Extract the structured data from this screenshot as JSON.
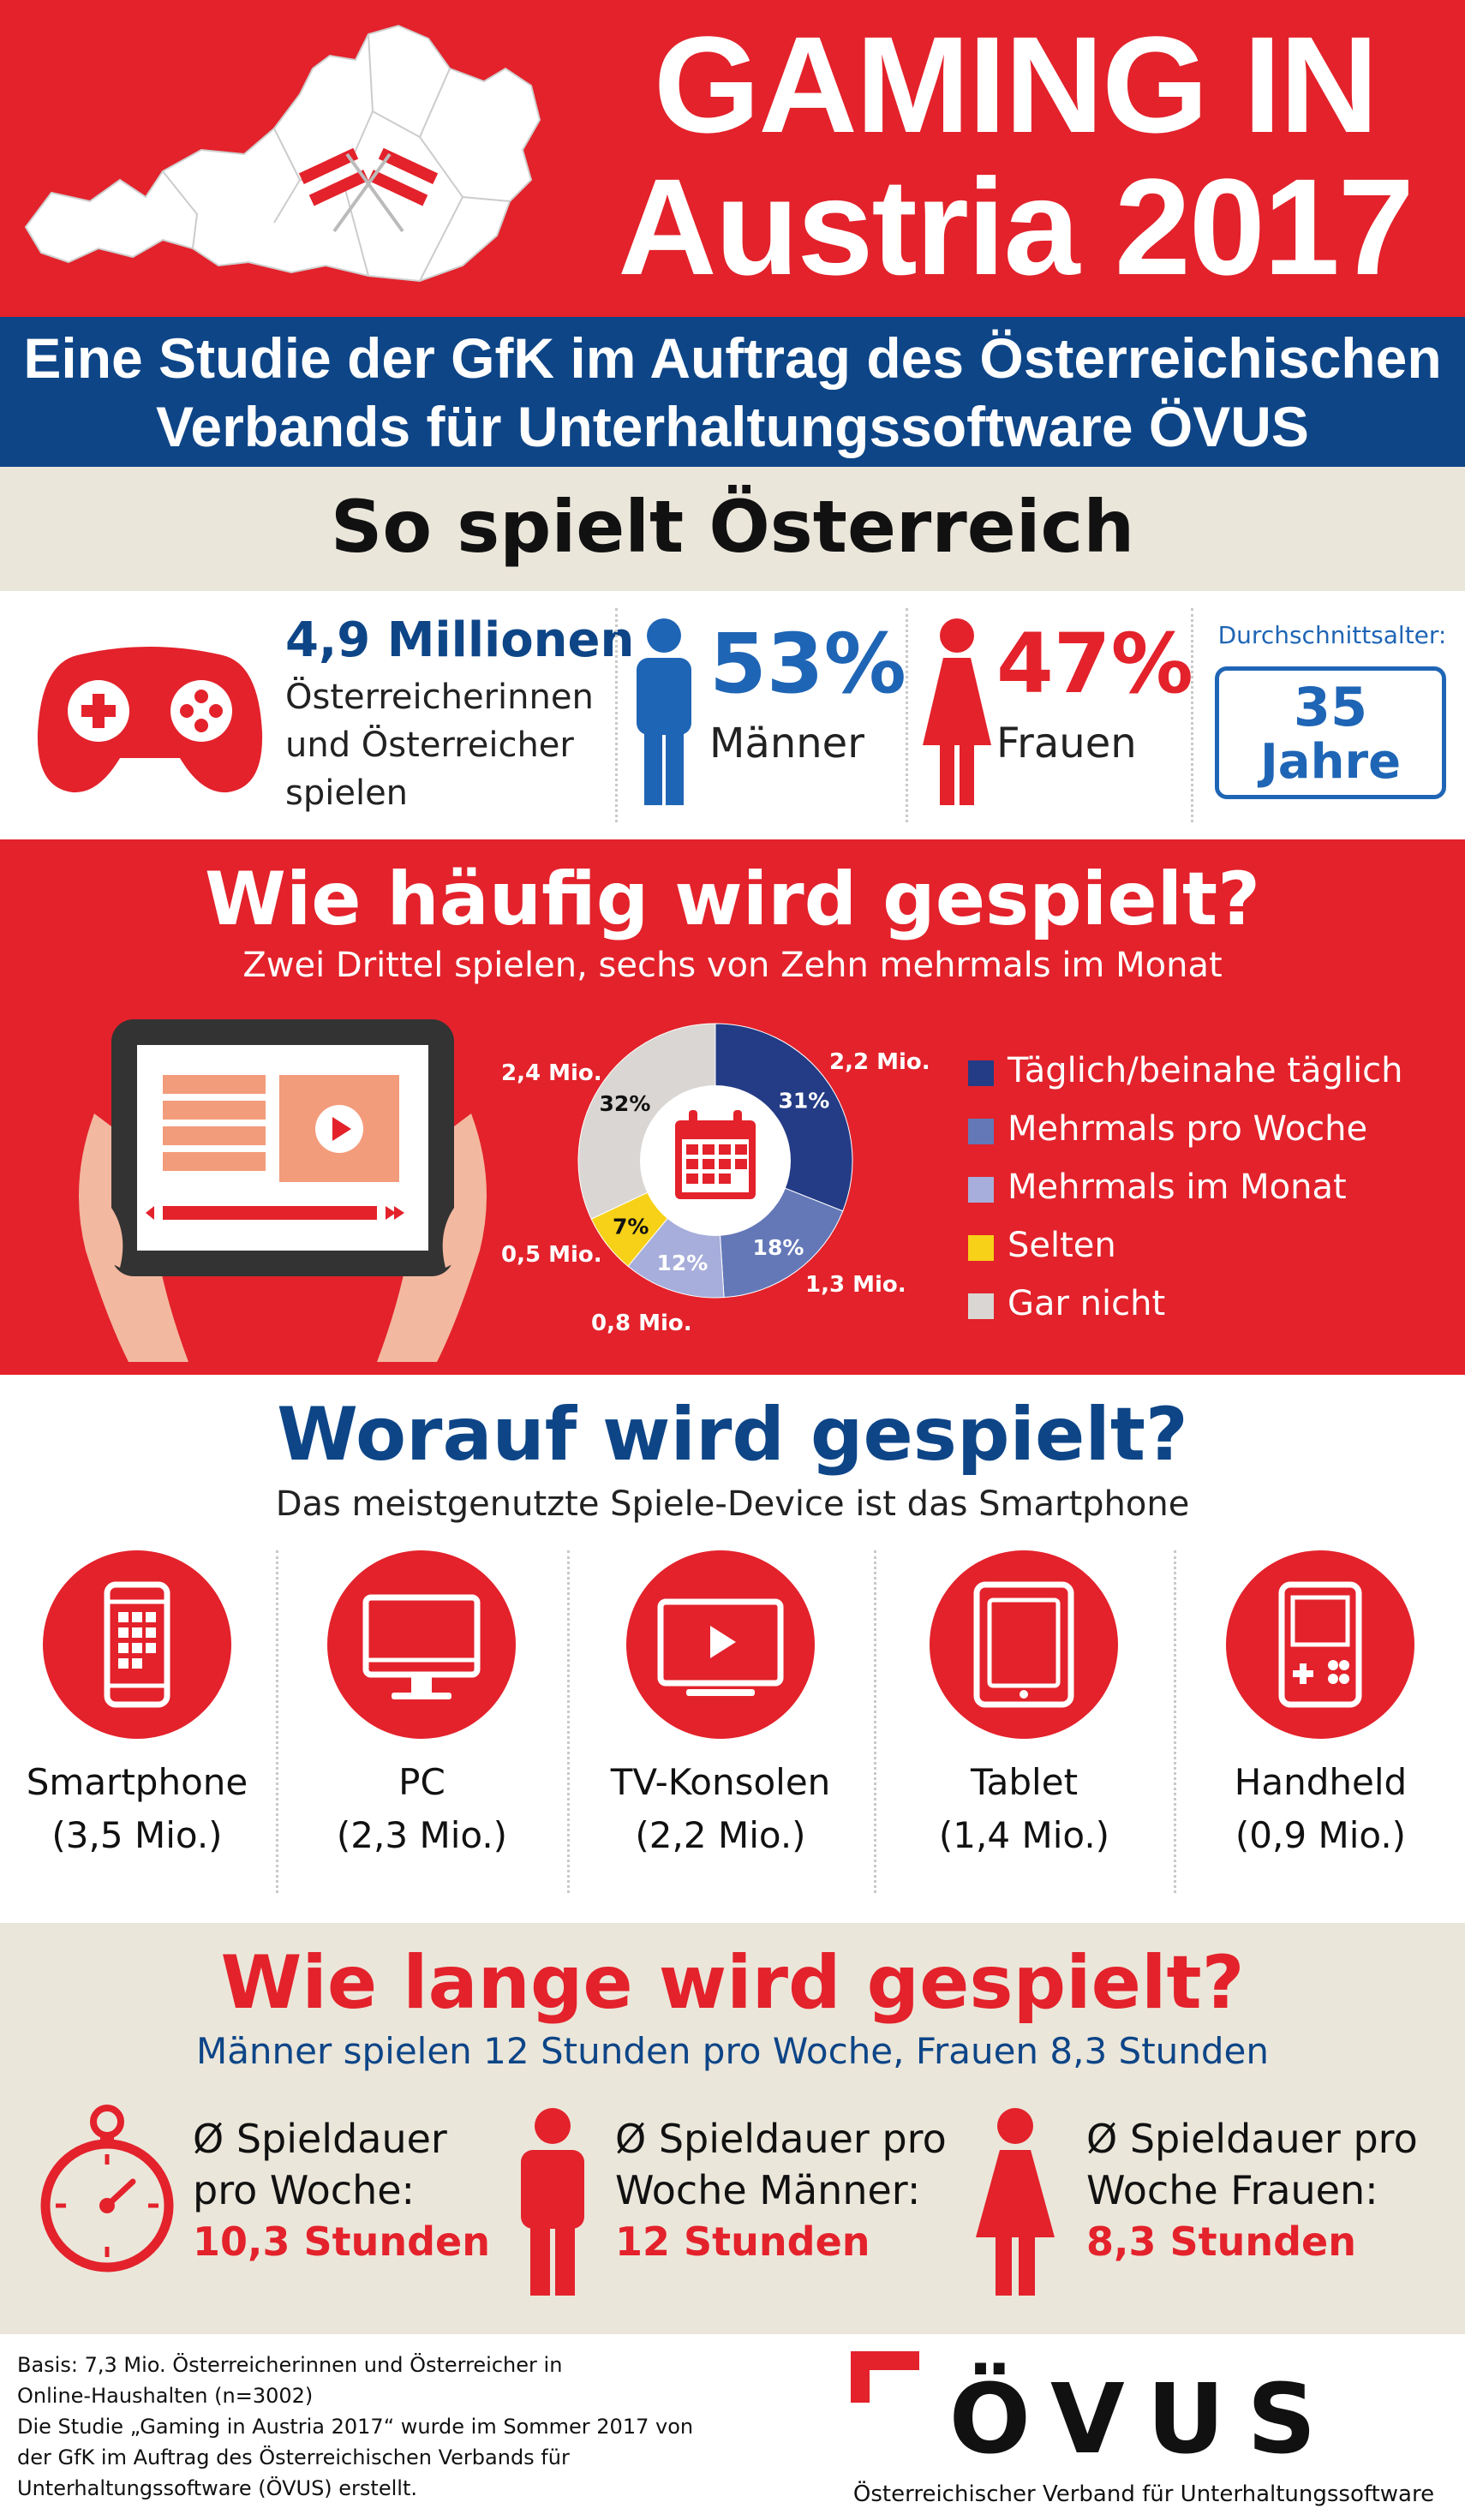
{
  "header": {
    "title_line1": "GAMING IN",
    "title_line2": "Austria 2017",
    "subtitle_line1": "Eine Studie der GfK im Auftrag des Österreichischen",
    "subtitle_line2": "Verbands für Unterhaltungssoftware ÖVUS"
  },
  "overview": {
    "heading": "So spielt Österreich",
    "players_count": "4,9 Millionen",
    "players_text_line1": "Österreicherinnen",
    "players_text_line2": "und Österreicher",
    "players_text_line3": "spielen",
    "men_pct": "53%",
    "men_label": "Männer",
    "women_pct": "47%",
    "women_label": "Frauen",
    "age_label": "Durchschnittsalter:",
    "age_value": "35",
    "age_unit": "Jahre"
  },
  "frequency": {
    "heading": "Wie häufig wird gespielt?",
    "subheading": "Zwei Drittel spielen, sechs von Zehn mehrmals im Monat",
    "chart_data": {
      "type": "pie",
      "categories": [
        "Täglich/beinahe täglich",
        "Mehrmals pro Woche",
        "Mehrmals im Monat",
        "Selten",
        "Gar nicht"
      ],
      "values": [
        31,
        18,
        12,
        7,
        32
      ],
      "pct_labels": [
        "31%",
        "18%",
        "12%",
        "7%",
        "32%"
      ],
      "abs_labels": [
        "2,2 Mio.",
        "1,3 Mio.",
        "0,8 Mio.",
        "0,5 Mio.",
        "2,4 Mio."
      ],
      "colors": [
        "#243b85",
        "#6478b8",
        "#a7aedb",
        "#f7d117",
        "#d9d6d3"
      ]
    }
  },
  "devices": {
    "heading": "Worauf wird gespielt?",
    "subheading": "Das meistgenutzte Spiele-Device ist das Smartphone",
    "items": [
      {
        "icon": "smartphone-icon",
        "name": "Smartphone",
        "value": "(3,5 Mio.)"
      },
      {
        "icon": "pc-monitor-icon",
        "name": "PC",
        "value": "(2,3 Mio.)"
      },
      {
        "icon": "tv-console-icon",
        "name": "TV-Konsolen",
        "value": "(2,2 Mio.)"
      },
      {
        "icon": "tablet-icon",
        "name": "Tablet",
        "value": "(1,4 Mio.)"
      },
      {
        "icon": "handheld-icon",
        "name": "Handheld",
        "value": "(0,9 Mio.)"
      }
    ]
  },
  "duration": {
    "heading": "Wie lange wird gespielt?",
    "subheading": "Männer spielen 12 Stunden pro Woche, Frauen 8,3 Stunden",
    "items": [
      {
        "line1": "Ø Spieldauer",
        "line2": "pro Woche:",
        "value": "10,3 Stunden"
      },
      {
        "line1": "Ø Spieldauer pro",
        "line2": "Woche Männer:",
        "value": "12 Stunden"
      },
      {
        "line1": "Ø Spieldauer pro",
        "line2": "Woche Frauen:",
        "value": "8,3 Stunden"
      }
    ]
  },
  "footer": {
    "basis_line1": "Basis: 7,3 Mio. Österreicherinnen und Österreicher in",
    "basis_line2": "Online-Haushalten (n=3002)",
    "note_line1": "Die Studie „Gaming in Austria 2017“ wurde im Sommer 2017 von",
    "note_line2": "der GfK im Auftrag des Österreichischen Verbands für",
    "note_line3": "Unterhaltungssoftware (ÖVUS) erstellt.",
    "logo_text": "ÖVUS",
    "org_name": "Österreichischer Verband für Unterhaltungssoftware"
  },
  "colors": {
    "red": "#e3222b",
    "blue": "#0d4587",
    "beige": "#ebe6da"
  }
}
